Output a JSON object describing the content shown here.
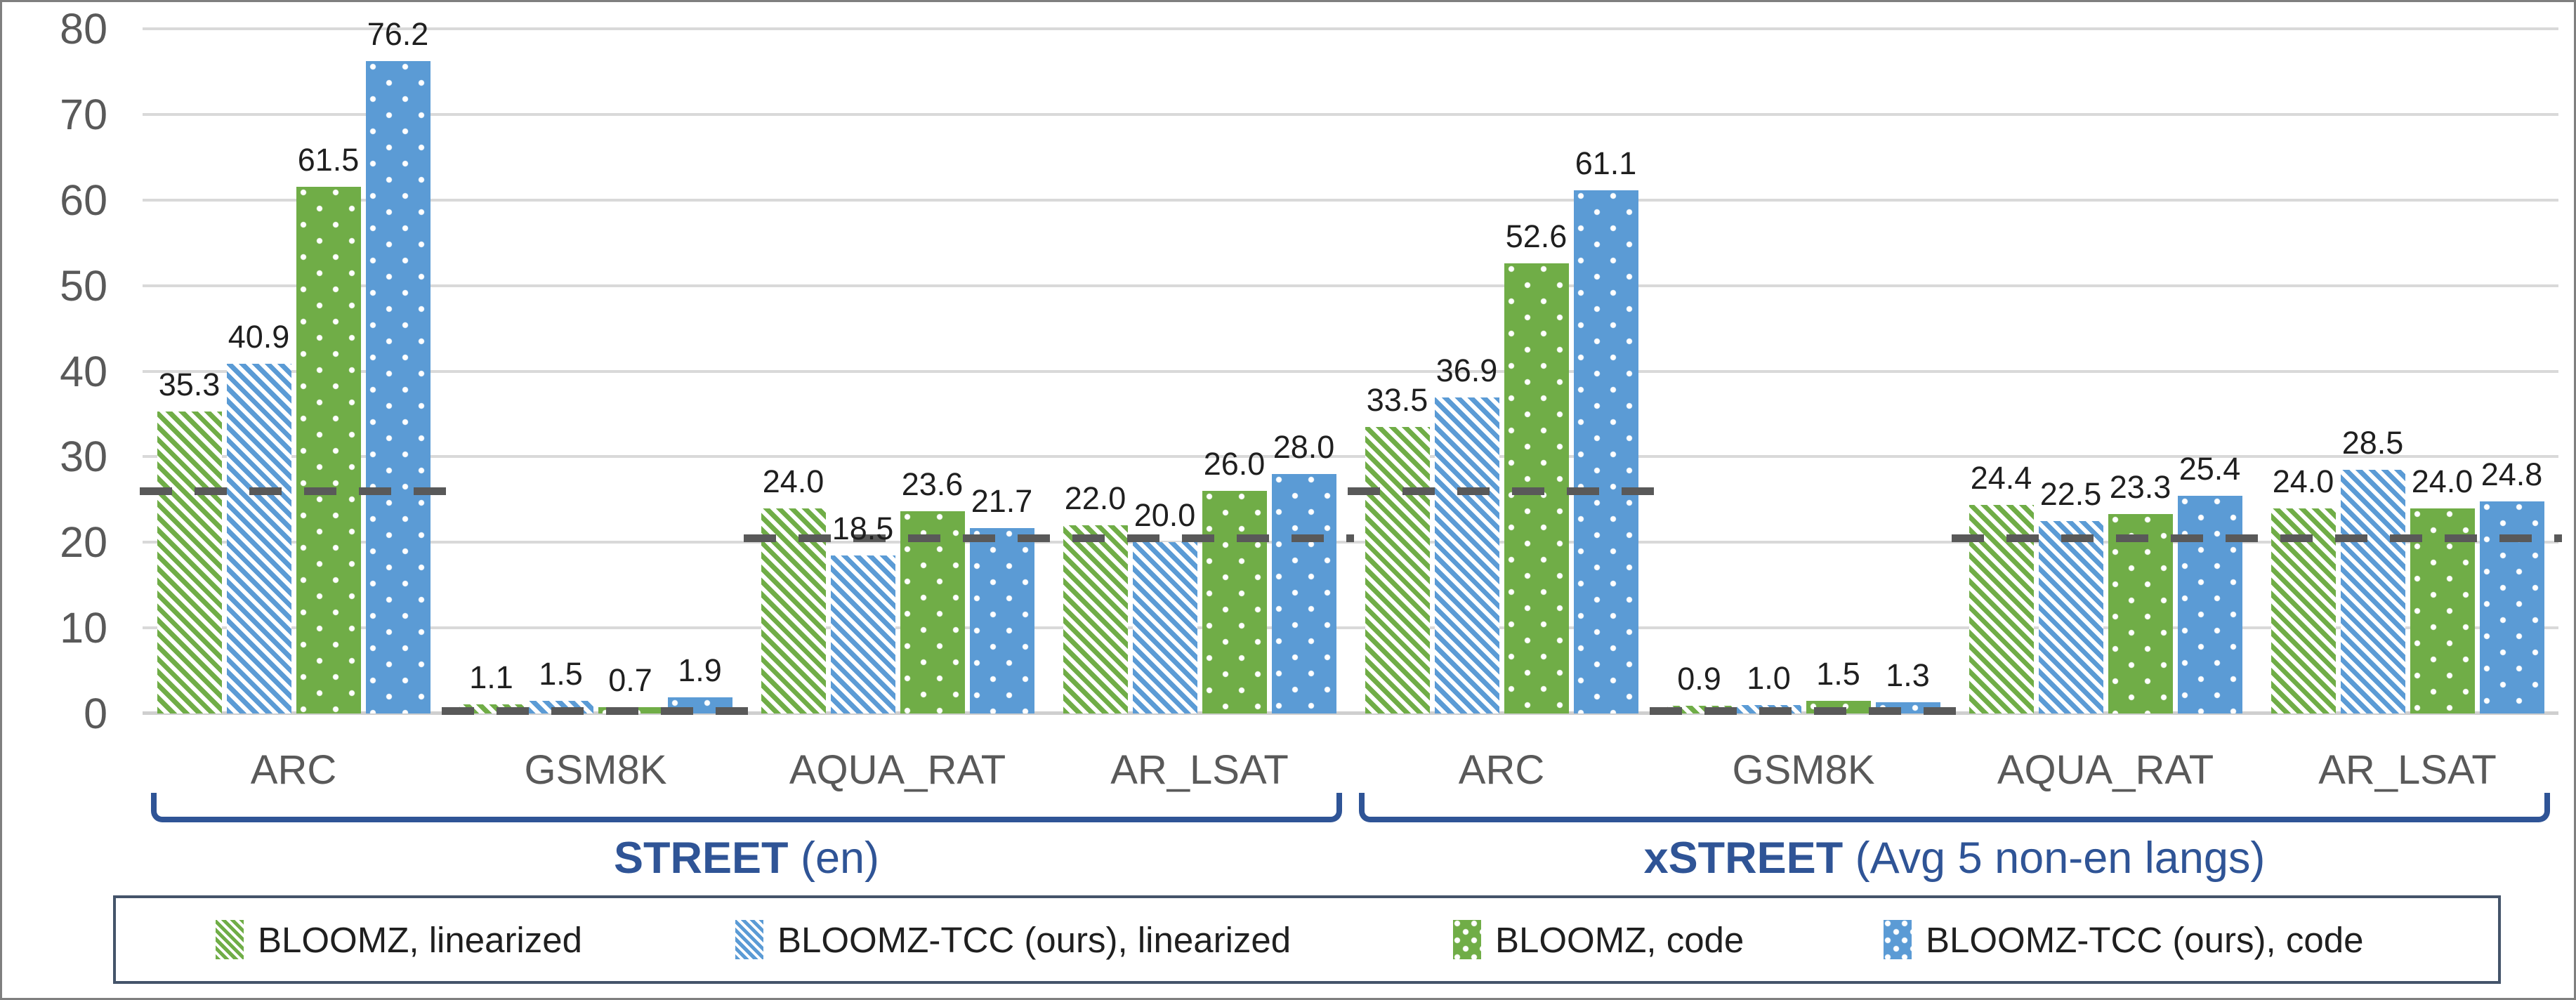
{
  "chart_data": {
    "type": "bar",
    "title": "",
    "xlabel": "",
    "ylabel": "",
    "ylim": [
      0,
      80
    ],
    "yticks": [
      0,
      10,
      20,
      30,
      40,
      50,
      60,
      70,
      80
    ],
    "grid": true,
    "legend_position": "bottom",
    "value_label_decimals": 1,
    "series": [
      {
        "name": "BLOOMZ, linearized",
        "color": "#70AD47",
        "pattern": "hatch"
      },
      {
        "name": "BLOOMZ-TCC (ours), linearized",
        "color": "#5B9BD5",
        "pattern": "hatch"
      },
      {
        "name": "BLOOMZ, code",
        "color": "#70AD47",
        "pattern": "dots"
      },
      {
        "name": "BLOOMZ-TCC (ours), code",
        "color": "#5B9BD5",
        "pattern": "dots"
      }
    ],
    "sections": [
      {
        "label_bold": "STREET",
        "label_rest": " (en)",
        "categories": [
          "ARC",
          "GSM8K",
          "AQUA_RAT",
          "AR_LSAT"
        ],
        "values": [
          [
            35.3,
            40.9,
            61.5,
            76.2
          ],
          [
            1.1,
            1.5,
            0.7,
            1.9
          ],
          [
            24.0,
            18.5,
            23.6,
            21.7
          ],
          [
            22.0,
            20.0,
            26.0,
            28.0
          ]
        ],
        "dashed_baselines": [
          {
            "from": 0,
            "to": 0,
            "value": 26
          },
          {
            "from": 1,
            "to": 1,
            "value": 0.3
          },
          {
            "from": 2,
            "to": 3,
            "value": 20.5
          }
        ]
      },
      {
        "label_bold": "xSTREET",
        "label_rest": " (Avg 5 non-en langs)",
        "categories": [
          "ARC",
          "GSM8K",
          "AQUA_RAT",
          "AR_LSAT"
        ],
        "values": [
          [
            33.5,
            36.9,
            52.6,
            61.1
          ],
          [
            0.9,
            1.0,
            1.5,
            1.3
          ],
          [
            24.4,
            22.5,
            23.3,
            25.4
          ],
          [
            24.0,
            28.5,
            24.0,
            24.8
          ]
        ],
        "dashed_baselines": [
          {
            "from": 0,
            "to": 0,
            "value": 26
          },
          {
            "from": 1,
            "to": 1,
            "value": 0.3
          },
          {
            "from": 2,
            "to": 3,
            "value": 20.5
          }
        ]
      }
    ],
    "colors": {
      "green": "#70AD47",
      "blue": "#5B9BD5",
      "gridline": "#D9D9D9",
      "axis_text": "#595959",
      "value_text": "#1F1F1F",
      "dashed_line": "#595959",
      "section_blue": "#2F5496",
      "legend_border": "#44546A",
      "frame_border": "#7F7F7F"
    }
  }
}
